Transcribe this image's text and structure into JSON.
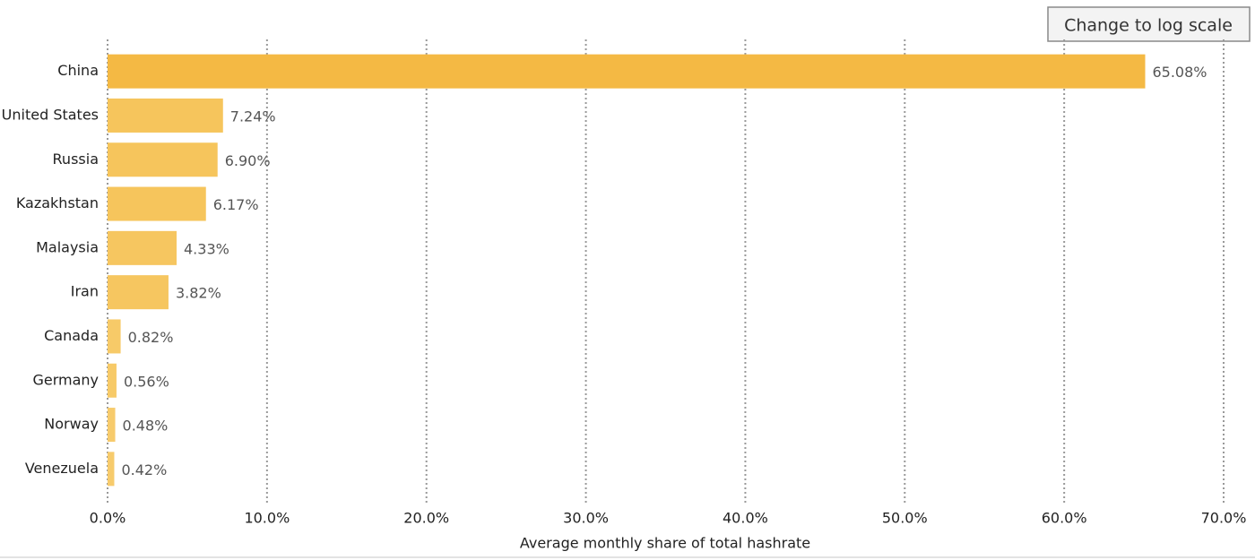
{
  "button_label": "Change to log scale",
  "chart_data": {
    "type": "bar",
    "orientation": "horizontal",
    "x_label": "Average monthly share of total hashrate",
    "categories": [
      "China",
      "United States",
      "Russia",
      "Kazakhstan",
      "Malaysia",
      "Iran",
      "Canada",
      "Germany",
      "Norway",
      "Venezuela"
    ],
    "values": [
      65.08,
      7.24,
      6.9,
      6.17,
      4.33,
      3.82,
      0.82,
      0.56,
      0.48,
      0.42
    ],
    "value_labels": [
      "65.08%",
      "7.24%",
      "6.90%",
      "6.17%",
      "4.33%",
      "3.82%",
      "0.82%",
      "0.56%",
      "0.48%",
      "0.42%"
    ],
    "colors": [
      "#f4b944",
      "#f6c55c",
      "#f6c55c",
      "#f6c55c",
      "#f6c660",
      "#f6c660",
      "#f7ca68",
      "#f7ca68",
      "#f7cb6c",
      "#f7cb6c"
    ],
    "xlim": [
      0,
      70
    ],
    "xticks": [
      {
        "value": 0,
        "label": "0.0%"
      },
      {
        "value": 10,
        "label": "10.0%"
      },
      {
        "value": 20,
        "label": "20.0%"
      },
      {
        "value": 30,
        "label": "30.0%"
      },
      {
        "value": 40,
        "label": "40.0%"
      },
      {
        "value": 50,
        "label": "50.0%"
      },
      {
        "value": 60,
        "label": "60.0%"
      },
      {
        "value": 70,
        "label": "70.0%"
      }
    ],
    "grid": true
  }
}
